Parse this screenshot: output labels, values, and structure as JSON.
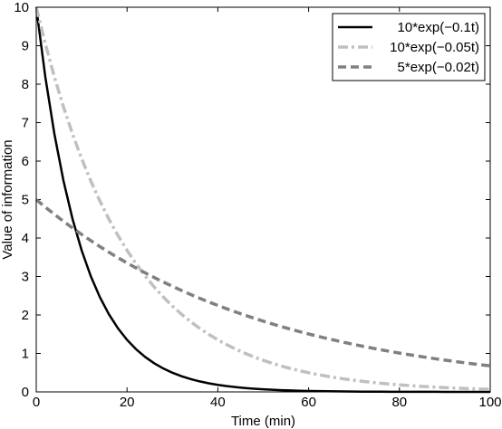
{
  "chart_data": {
    "type": "line",
    "xlabel": "Time (min)",
    "ylabel": "Value of information",
    "xlim": [
      0,
      100
    ],
    "ylim": [
      0,
      10
    ],
    "xticks": [
      0,
      20,
      40,
      60,
      80,
      100
    ],
    "yticks": [
      0,
      1,
      2,
      3,
      4,
      5,
      6,
      7,
      8,
      9,
      10
    ],
    "grid": false,
    "legend_position": "top-right",
    "x": [
      0,
      2,
      4,
      6,
      8,
      10,
      12,
      14,
      16,
      18,
      20,
      22,
      24,
      26,
      28,
      30,
      32,
      34,
      36,
      38,
      40,
      42,
      44,
      46,
      48,
      50,
      52,
      54,
      56,
      58,
      60,
      62,
      64,
      66,
      68,
      70,
      72,
      74,
      76,
      78,
      80,
      82,
      84,
      86,
      88,
      90,
      92,
      94,
      96,
      98,
      100
    ],
    "series": [
      {
        "name": "10*exp(−0.1t)",
        "style": "solid",
        "color": "#000000",
        "values": [
          10.0,
          8.187,
          6.703,
          5.488,
          4.493,
          3.679,
          3.012,
          2.466,
          2.019,
          1.653,
          1.353,
          1.108,
          0.907,
          0.743,
          0.608,
          0.498,
          0.408,
          0.334,
          0.273,
          0.224,
          0.183,
          0.15,
          0.123,
          0.101,
          0.082,
          0.067,
          0.055,
          0.045,
          0.037,
          0.03,
          0.025,
          0.02,
          0.017,
          0.014,
          0.011,
          0.009,
          0.007,
          0.006,
          0.005,
          0.004,
          0.003,
          0.003,
          0.002,
          0.002,
          0.002,
          0.001,
          0.001,
          0.001,
          0.001,
          0.001,
          0.0005
        ]
      },
      {
        "name": "10*exp(−0.05t)",
        "style": "dashdot",
        "color": "#c0c0c0",
        "values": [
          10.0,
          9.048,
          8.187,
          7.408,
          6.703,
          6.065,
          5.488,
          4.966,
          4.493,
          4.066,
          3.679,
          3.329,
          3.012,
          2.725,
          2.466,
          2.231,
          2.019,
          1.827,
          1.653,
          1.496,
          1.353,
          1.225,
          1.108,
          1.003,
          0.907,
          0.821,
          0.743,
          0.672,
          0.608,
          0.55,
          0.498,
          0.45,
          0.408,
          0.369,
          0.334,
          0.302,
          0.273,
          0.247,
          0.224,
          0.202,
          0.183,
          0.166,
          0.15,
          0.136,
          0.123,
          0.111,
          0.101,
          0.091,
          0.082,
          0.074,
          0.067
        ]
      },
      {
        "name": "5*exp(−0.02t)",
        "style": "dashed",
        "color": "#808080",
        "values": [
          5.0,
          4.802,
          4.616,
          4.435,
          4.261,
          4.094,
          3.933,
          3.779,
          3.631,
          3.488,
          3.352,
          3.22,
          3.094,
          2.973,
          2.856,
          2.744,
          2.636,
          2.533,
          2.434,
          2.338,
          2.247,
          2.159,
          2.074,
          1.993,
          1.914,
          1.839,
          1.767,
          1.698,
          1.631,
          1.567,
          1.506,
          1.447,
          1.39,
          1.336,
          1.283,
          1.233,
          1.185,
          1.138,
          1.093,
          1.051,
          1.009,
          0.97,
          0.932,
          0.895,
          0.86,
          0.826,
          0.794,
          0.763,
          0.733,
          0.704,
          0.677
        ]
      }
    ]
  }
}
